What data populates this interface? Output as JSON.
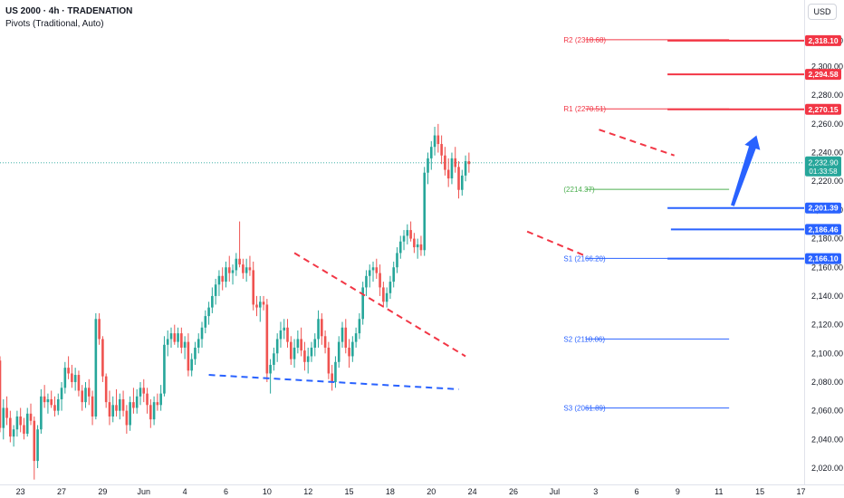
{
  "header": {
    "title": "US 2000 · 4h · TRADENATION",
    "indicator": "Pivots (Traditional, Auto)"
  },
  "currency_button": "USD",
  "colors": {
    "up": "#26a69a",
    "down": "#ef5350",
    "resistance": "#f23645",
    "support": "#2962ff",
    "pivot_green": "#4caf50",
    "grid_text": "#131722"
  },
  "chart_data": {
    "type": "candlestick",
    "symbol": "US 2000",
    "timeframe": "4h",
    "ylim": [
      2010,
      2328
    ],
    "yticks": [
      "2,020.00",
      "2,040.00",
      "2,060.00",
      "2,080.00",
      "2,100.00",
      "2,120.00",
      "2,140.00",
      "2,160.00",
      "2,180.00",
      "2,200.00",
      "2,220.00",
      "2,240.00",
      "2,260.00",
      "2,280.00",
      "2,300.00",
      "2,318.00"
    ],
    "xticks": [
      {
        "label": "23",
        "i": 6
      },
      {
        "label": "27",
        "i": 18
      },
      {
        "label": "29",
        "i": 30
      },
      {
        "label": "Jun",
        "i": 42
      },
      {
        "label": "4",
        "i": 54
      },
      {
        "label": "6",
        "i": 66
      },
      {
        "label": "10",
        "i": 78
      },
      {
        "label": "12",
        "i": 90
      },
      {
        "label": "15",
        "i": 102
      },
      {
        "label": "18",
        "i": 114
      },
      {
        "label": "20",
        "i": 126
      },
      {
        "label": "24",
        "i": 138
      },
      {
        "label": "26",
        "i": 150
      },
      {
        "label": "Jul",
        "i": 162
      },
      {
        "label": "3",
        "i": 174
      },
      {
        "label": "6",
        "i": 186
      },
      {
        "label": "9",
        "i": 198
      },
      {
        "label": "11",
        "i": 210
      },
      {
        "label": "15",
        "i": 222
      },
      {
        "label": "17",
        "i": 234
      }
    ],
    "pivots": [
      {
        "label": "R2 (2318.68)",
        "value": 2318.68,
        "kind": "resistance",
        "from_i": 171,
        "to_i": 213
      },
      {
        "label": "R1 (2270.51)",
        "value": 2270.51,
        "kind": "resistance",
        "from_i": 171,
        "to_i": 213
      },
      {
        "label": "(2214.37)",
        "value": 2214.37,
        "kind": "pivot",
        "from_i": 171,
        "to_i": 213
      },
      {
        "label": "S1 (2166.20)",
        "value": 2166.2,
        "kind": "support",
        "from_i": 171,
        "to_i": 213
      },
      {
        "label": "S2 (2110.06)",
        "value": 2110.06,
        "kind": "support",
        "from_i": 171,
        "to_i": 213
      },
      {
        "label": "S3 (2061.89)",
        "value": 2061.89,
        "kind": "support",
        "from_i": 171,
        "to_i": 213
      }
    ],
    "levels": [
      {
        "label": "2,318.10",
        "value": 2318.1,
        "kind": "resistance",
        "from_i": 195
      },
      {
        "label": "2,294.58",
        "value": 2294.58,
        "kind": "resistance",
        "from_i": 195
      },
      {
        "label": "2,270.15",
        "value": 2270.15,
        "kind": "resistance",
        "from_i": 195
      },
      {
        "label": "2,201.39",
        "value": 2201.39,
        "kind": "support",
        "from_i": 195
      },
      {
        "label": "2,186.46",
        "value": 2186.46,
        "kind": "support",
        "from_i": 196
      },
      {
        "label": "2,166.10",
        "value": 2166.1,
        "kind": "support",
        "from_i": 195
      }
    ],
    "last_price": {
      "label": "2,232.90",
      "countdown": "01:33:58",
      "value": 2232.9
    },
    "trendlines": [
      {
        "kind": "resistance",
        "from": [
          86,
          2170
        ],
        "to": [
          136,
          2098
        ]
      },
      {
        "kind": "support",
        "from": [
          61,
          2085
        ],
        "to": [
          134,
          2075
        ]
      },
      {
        "kind": "resistance",
        "from": [
          154,
          2185
        ],
        "to": [
          171,
          2168
        ]
      },
      {
        "kind": "resistance",
        "from": [
          175,
          2256
        ],
        "to": [
          197,
          2238
        ]
      }
    ],
    "arrow": {
      "from": [
        214,
        2203
      ],
      "to": [
        221,
        2252
      ]
    },
    "candles": [
      [
        2095,
        2098,
        2045,
        2048
      ],
      [
        2048,
        2068,
        2040,
        2062
      ],
      [
        2062,
        2070,
        2050,
        2055
      ],
      [
        2055,
        2060,
        2038,
        2042
      ],
      [
        2042,
        2050,
        2035,
        2047
      ],
      [
        2047,
        2060,
        2042,
        2056
      ],
      [
        2056,
        2062,
        2045,
        2050
      ],
      [
        2050,
        2055,
        2040,
        2044
      ],
      [
        2044,
        2062,
        2042,
        2058
      ],
      [
        2058,
        2065,
        2050,
        2053
      ],
      [
        2053,
        2056,
        2012,
        2025
      ],
      [
        2025,
        2050,
        2020,
        2047
      ],
      [
        2047,
        2075,
        2044,
        2070
      ],
      [
        2070,
        2078,
        2062,
        2066
      ],
      [
        2066,
        2072,
        2058,
        2068
      ],
      [
        2068,
        2074,
        2062,
        2064
      ],
      [
        2064,
        2070,
        2056,
        2060
      ],
      [
        2060,
        2072,
        2057,
        2068
      ],
      [
        2068,
        2080,
        2060,
        2076
      ],
      [
        2076,
        2094,
        2072,
        2090
      ],
      [
        2090,
        2098,
        2082,
        2086
      ],
      [
        2086,
        2092,
        2076,
        2080
      ],
      [
        2080,
        2090,
        2074,
        2085
      ],
      [
        2085,
        2088,
        2070,
        2074
      ],
      [
        2074,
        2078,
        2060,
        2066
      ],
      [
        2066,
        2080,
        2062,
        2076
      ],
      [
        2076,
        2082,
        2064,
        2070
      ],
      [
        2070,
        2074,
        2050,
        2056
      ],
      [
        2056,
        2128,
        2054,
        2124
      ],
      [
        2124,
        2128,
        2106,
        2110
      ],
      [
        2110,
        2112,
        2080,
        2084
      ],
      [
        2084,
        2086,
        2062,
        2066
      ],
      [
        2066,
        2074,
        2050,
        2056
      ],
      [
        2056,
        2070,
        2052,
        2064
      ],
      [
        2064,
        2075,
        2056,
        2060
      ],
      [
        2060,
        2072,
        2054,
        2068
      ],
      [
        2068,
        2074,
        2056,
        2060
      ],
      [
        2060,
        2064,
        2044,
        2050
      ],
      [
        2050,
        2070,
        2046,
        2066
      ],
      [
        2066,
        2076,
        2058,
        2062
      ],
      [
        2062,
        2075,
        2058,
        2070
      ],
      [
        2070,
        2080,
        2064,
        2076
      ],
      [
        2076,
        2082,
        2066,
        2072
      ],
      [
        2072,
        2076,
        2058,
        2064
      ],
      [
        2064,
        2068,
        2048,
        2054
      ],
      [
        2054,
        2070,
        2050,
        2066
      ],
      [
        2066,
        2072,
        2060,
        2064
      ],
      [
        2064,
        2078,
        2060,
        2072
      ],
      [
        2072,
        2112,
        2070,
        2106
      ],
      [
        2106,
        2116,
        2098,
        2110
      ],
      [
        2110,
        2118,
        2104,
        2114
      ],
      [
        2114,
        2120,
        2106,
        2108
      ],
      [
        2108,
        2118,
        2104,
        2114
      ],
      [
        2114,
        2118,
        2100,
        2104
      ],
      [
        2104,
        2112,
        2096,
        2108
      ],
      [
        2108,
        2114,
        2084,
        2088
      ],
      [
        2088,
        2100,
        2084,
        2096
      ],
      [
        2096,
        2108,
        2092,
        2104
      ],
      [
        2104,
        2114,
        2100,
        2110
      ],
      [
        2110,
        2122,
        2104,
        2118
      ],
      [
        2118,
        2130,
        2114,
        2126
      ],
      [
        2126,
        2136,
        2120,
        2132
      ],
      [
        2132,
        2146,
        2128,
        2140
      ],
      [
        2140,
        2152,
        2134,
        2148
      ],
      [
        2148,
        2158,
        2140,
        2154
      ],
      [
        2154,
        2160,
        2144,
        2150
      ],
      [
        2150,
        2164,
        2146,
        2160
      ],
      [
        2160,
        2168,
        2150,
        2156
      ],
      [
        2156,
        2162,
        2148,
        2158
      ],
      [
        2158,
        2170,
        2154,
        2166
      ],
      [
        2166,
        2192,
        2160,
        2162
      ],
      [
        2162,
        2166,
        2152,
        2156
      ],
      [
        2156,
        2166,
        2150,
        2160
      ],
      [
        2160,
        2168,
        2154,
        2158
      ],
      [
        2158,
        2164,
        2130,
        2134
      ],
      [
        2134,
        2140,
        2126,
        2132
      ],
      [
        2132,
        2140,
        2122,
        2136
      ],
      [
        2136,
        2140,
        2130,
        2134
      ],
      [
        2134,
        2138,
        2080,
        2086
      ],
      [
        2086,
        2096,
        2072,
        2092
      ],
      [
        2092,
        2104,
        2088,
        2100
      ],
      [
        2100,
        2114,
        2094,
        2110
      ],
      [
        2110,
        2122,
        2104,
        2116
      ],
      [
        2116,
        2124,
        2110,
        2118
      ],
      [
        2118,
        2124,
        2104,
        2108
      ],
      [
        2108,
        2112,
        2092,
        2096
      ],
      [
        2096,
        2110,
        2090,
        2104
      ],
      [
        2104,
        2116,
        2100,
        2110
      ],
      [
        2110,
        2118,
        2098,
        2102
      ],
      [
        2102,
        2108,
        2088,
        2094
      ],
      [
        2094,
        2104,
        2086,
        2098
      ],
      [
        2098,
        2108,
        2094,
        2104
      ],
      [
        2104,
        2114,
        2098,
        2110
      ],
      [
        2110,
        2130,
        2104,
        2124
      ],
      [
        2124,
        2128,
        2106,
        2112
      ],
      [
        2112,
        2116,
        2100,
        2104
      ],
      [
        2104,
        2108,
        2082,
        2086
      ],
      [
        2086,
        2092,
        2074,
        2080
      ],
      [
        2080,
        2098,
        2076,
        2094
      ],
      [
        2094,
        2112,
        2090,
        2108
      ],
      [
        2108,
        2122,
        2104,
        2118
      ],
      [
        2118,
        2124,
        2100,
        2104
      ],
      [
        2104,
        2110,
        2090,
        2098
      ],
      [
        2098,
        2112,
        2094,
        2108
      ],
      [
        2108,
        2118,
        2104,
        2114
      ],
      [
        2114,
        2128,
        2110,
        2124
      ],
      [
        2124,
        2150,
        2120,
        2146
      ],
      [
        2146,
        2158,
        2140,
        2154
      ],
      [
        2154,
        2162,
        2146,
        2158
      ],
      [
        2158,
        2164,
        2150,
        2160
      ],
      [
        2160,
        2166,
        2152,
        2156
      ],
      [
        2156,
        2162,
        2140,
        2146
      ],
      [
        2146,
        2150,
        2132,
        2136
      ],
      [
        2136,
        2146,
        2132,
        2142
      ],
      [
        2142,
        2154,
        2138,
        2150
      ],
      [
        2150,
        2164,
        2146,
        2160
      ],
      [
        2160,
        2174,
        2156,
        2170
      ],
      [
        2170,
        2182,
        2166,
        2178
      ],
      [
        2178,
        2186,
        2172,
        2182
      ],
      [
        2182,
        2190,
        2176,
        2186
      ],
      [
        2186,
        2192,
        2178,
        2180
      ],
      [
        2180,
        2184,
        2170,
        2174
      ],
      [
        2174,
        2180,
        2166,
        2176
      ],
      [
        2176,
        2182,
        2168,
        2172
      ],
      [
        2172,
        2230,
        2168,
        2226
      ],
      [
        2226,
        2240,
        2218,
        2236
      ],
      [
        2236,
        2248,
        2228,
        2244
      ],
      [
        2244,
        2258,
        2238,
        2252
      ],
      [
        2252,
        2260,
        2240,
        2246
      ],
      [
        2246,
        2252,
        2232,
        2238
      ],
      [
        2238,
        2244,
        2224,
        2228
      ],
      [
        2228,
        2236,
        2216,
        2222
      ],
      [
        2222,
        2240,
        2218,
        2236
      ],
      [
        2236,
        2244,
        2226,
        2230
      ],
      [
        2230,
        2234,
        2208,
        2214
      ],
      [
        2214,
        2228,
        2210,
        2224
      ],
      [
        2224,
        2238,
        2220,
        2234
      ],
      [
        2234,
        2240,
        2226,
        2232
      ]
    ]
  }
}
